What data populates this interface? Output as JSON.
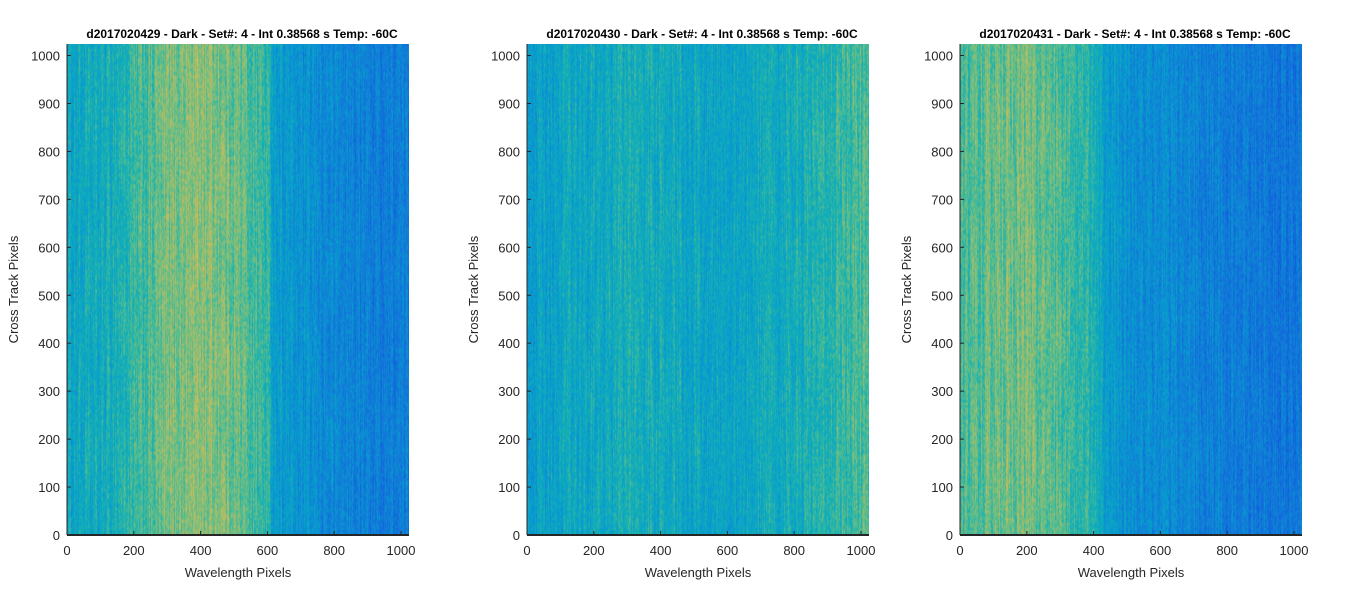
{
  "chart_data": [
    {
      "type": "heatmap",
      "title": "d2017020429 - Dark - Set#: 4 - Int 0.38568 s Temp: -60C",
      "xlabel": "Wavelength Pixels",
      "ylabel": "Cross Track Pixels",
      "xlim": [
        0,
        1024
      ],
      "ylim": [
        0,
        1024
      ],
      "xticks": [
        0,
        200,
        400,
        600,
        800,
        1000
      ],
      "yticks": [
        0,
        100,
        200,
        300,
        400,
        500,
        600,
        700,
        800,
        900,
        1000
      ],
      "colormap": "parula",
      "column_intensity_profile": [
        {
          "x": 0,
          "level": 0.48
        },
        {
          "x": 100,
          "level": 0.5
        },
        {
          "x": 200,
          "level": 0.58
        },
        {
          "x": 300,
          "level": 0.68
        },
        {
          "x": 400,
          "level": 0.72
        },
        {
          "x": 500,
          "level": 0.68
        },
        {
          "x": 600,
          "level": 0.58
        },
        {
          "x": 620,
          "level": 0.45
        },
        {
          "x": 700,
          "level": 0.38
        },
        {
          "x": 800,
          "level": 0.34
        },
        {
          "x": 900,
          "level": 0.31
        },
        {
          "x": 1024,
          "level": 0.29
        }
      ]
    },
    {
      "type": "heatmap",
      "title": "d2017020430 - Dark - Set#: 4 - Int 0.38568 s Temp: -60C",
      "xlabel": "Wavelength Pixels",
      "ylabel": "Cross Track Pixels",
      "xlim": [
        0,
        1024
      ],
      "ylim": [
        0,
        1024
      ],
      "xticks": [
        0,
        200,
        400,
        600,
        800,
        1000
      ],
      "yticks": [
        0,
        100,
        200,
        300,
        400,
        500,
        600,
        700,
        800,
        900,
        1000
      ],
      "colormap": "parula",
      "column_intensity_profile": [
        {
          "x": 0,
          "level": 0.44
        },
        {
          "x": 100,
          "level": 0.47
        },
        {
          "x": 200,
          "level": 0.49
        },
        {
          "x": 300,
          "level": 0.52
        },
        {
          "x": 400,
          "level": 0.51
        },
        {
          "x": 500,
          "level": 0.48
        },
        {
          "x": 600,
          "level": 0.47
        },
        {
          "x": 700,
          "level": 0.49
        },
        {
          "x": 800,
          "level": 0.52
        },
        {
          "x": 900,
          "level": 0.57
        },
        {
          "x": 1024,
          "level": 0.64
        }
      ]
    },
    {
      "type": "heatmap",
      "title": "d2017020431 - Dark - Set#: 4 - Int 0.38568 s Temp: -60C",
      "xlabel": "Wavelength Pixels",
      "ylabel": "Cross Track Pixels",
      "xlim": [
        0,
        1024
      ],
      "ylim": [
        0,
        1024
      ],
      "xticks": [
        0,
        200,
        400,
        600,
        800,
        1000
      ],
      "yticks": [
        0,
        100,
        200,
        300,
        400,
        500,
        600,
        700,
        800,
        900,
        1000
      ],
      "colormap": "parula",
      "column_intensity_profile": [
        {
          "x": 0,
          "level": 0.62
        },
        {
          "x": 100,
          "level": 0.66
        },
        {
          "x": 200,
          "level": 0.68
        },
        {
          "x": 300,
          "level": 0.62
        },
        {
          "x": 400,
          "level": 0.55
        },
        {
          "x": 440,
          "level": 0.44
        },
        {
          "x": 500,
          "level": 0.38
        },
        {
          "x": 600,
          "level": 0.36
        },
        {
          "x": 700,
          "level": 0.33
        },
        {
          "x": 800,
          "level": 0.31
        },
        {
          "x": 900,
          "level": 0.28
        },
        {
          "x": 1024,
          "level": 0.26
        }
      ]
    }
  ]
}
